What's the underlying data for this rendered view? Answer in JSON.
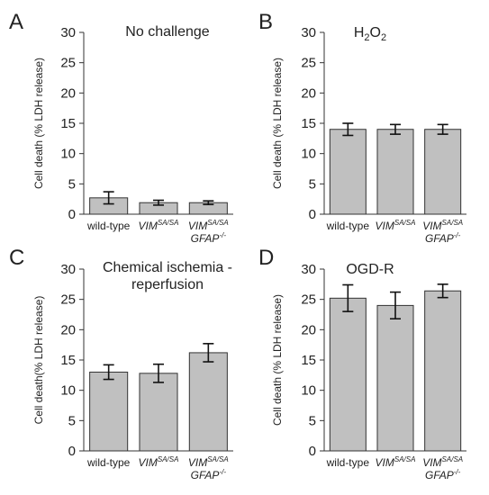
{
  "categories": [
    "wild-type",
    "VIMSA/SA",
    "VIMSA/SA GFAP-/-"
  ],
  "chart_data": [
    {
      "type": "bar",
      "panel_label": "A",
      "title": "No challenge",
      "ylabel": "Cell death  (% LDH release)",
      "ylim": [
        0,
        30
      ],
      "yticks": [
        0,
        5,
        10,
        15,
        20,
        25,
        30
      ],
      "categories": [
        "wild-type",
        "VIMSA/SA",
        "VIMSA/SA GFAP-/-"
      ],
      "values": [
        2.7,
        1.9,
        1.9
      ],
      "errors": [
        1.0,
        0.4,
        0.3
      ],
      "bar_color": "#c0c0c0"
    },
    {
      "type": "bar",
      "panel_label": "B",
      "title": "H2O2",
      "ylabel": "Cell death  (% LDH release)",
      "ylim": [
        0,
        30
      ],
      "yticks": [
        0,
        5,
        10,
        15,
        20,
        25,
        30
      ],
      "categories": [
        "wild-type",
        "VIMSA/SA",
        "VIMSA/SA GFAP-/-"
      ],
      "values": [
        14.0,
        14.0,
        14.0
      ],
      "errors": [
        1.0,
        0.8,
        0.8
      ],
      "bar_color": "#c0c0c0"
    },
    {
      "type": "bar",
      "panel_label": "C",
      "title": "Chemical ischemia - reperfusion",
      "ylabel": "Cell death(% LDH release)",
      "ylim": [
        0,
        30
      ],
      "yticks": [
        0,
        5,
        10,
        15,
        20,
        25,
        30
      ],
      "categories": [
        "wild-type",
        "VIMSA/SA",
        "VIMSA/SA GFAP-/-"
      ],
      "values": [
        13.0,
        12.8,
        16.2
      ],
      "errors": [
        1.2,
        1.5,
        1.5
      ],
      "bar_color": "#c0c0c0"
    },
    {
      "type": "bar",
      "panel_label": "D",
      "title": "OGD-R",
      "ylabel": "Cell death  (% LDH release)",
      "ylim": [
        0,
        30
      ],
      "yticks": [
        0,
        5,
        10,
        15,
        20,
        25,
        30
      ],
      "categories": [
        "wild-type",
        "VIMSA/SA",
        "VIMSA/SA GFAP-/-"
      ],
      "values": [
        25.2,
        24.0,
        26.4
      ],
      "errors": [
        2.2,
        2.2,
        1.1
      ],
      "bar_color": "#c0c0c0"
    }
  ]
}
